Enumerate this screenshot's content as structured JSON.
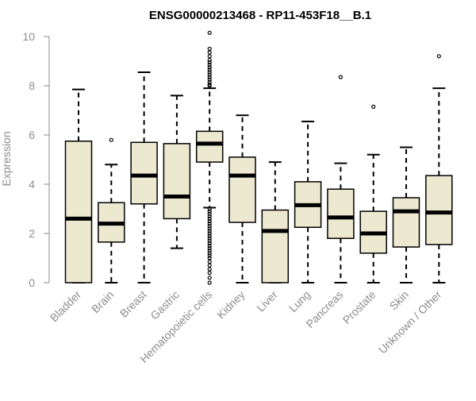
{
  "chart_data": {
    "type": "boxplot",
    "title": "ENSG00000213468 - RP11-453F18__B.1",
    "ylabel": "Expression",
    "xlabel": "",
    "ylim": [
      0,
      10
    ],
    "yticks": [
      0,
      2,
      4,
      6,
      8,
      10
    ],
    "grid": false,
    "legend": "none",
    "box_fill": "#ede8d0",
    "box_stroke": "#000000",
    "axis_color": "#8c8c8c",
    "categories": [
      "Bladder",
      "Brain",
      "Breast",
      "Gastric",
      "Hematopoietic cells",
      "Kidney",
      "Liver",
      "Lung",
      "Pancreas",
      "Prostate",
      "Skin",
      "Unknown / Other"
    ],
    "boxes": [
      {
        "min": 0,
        "q1": 0,
        "median": 2.6,
        "q3": 5.75,
        "max": 7.85,
        "outliers": []
      },
      {
        "min": 0,
        "q1": 1.65,
        "median": 2.4,
        "q3": 3.25,
        "max": 4.8,
        "outliers": [
          5.8
        ]
      },
      {
        "min": 0,
        "q1": 3.2,
        "median": 4.35,
        "q3": 5.7,
        "max": 8.55,
        "outliers": []
      },
      {
        "min": 1.4,
        "q1": 2.6,
        "median": 3.5,
        "q3": 5.65,
        "max": 7.6,
        "outliers": []
      },
      {
        "min": 3.05,
        "q1": 4.9,
        "median": 5.65,
        "q3": 6.15,
        "max": 7.9,
        "outliers": [
          10.15,
          9.5,
          9.35,
          9.2,
          9.05,
          8.95,
          8.85,
          8.75,
          8.65,
          8.55,
          8.45,
          8.35,
          8.25,
          8.15,
          8.05,
          8.0,
          3.0,
          2.9,
          2.8,
          2.7,
          2.6,
          2.5,
          2.4,
          2.3,
          2.2,
          2.1,
          2.0,
          1.9,
          1.8,
          1.7,
          1.6,
          1.5,
          1.4,
          1.3,
          1.2,
          1.1,
          1.0,
          0.85,
          0.7,
          0.55,
          0.4,
          0.2,
          0.0
        ]
      },
      {
        "min": 0,
        "q1": 2.45,
        "median": 4.35,
        "q3": 5.1,
        "max": 6.8,
        "outliers": []
      },
      {
        "min": 0,
        "q1": 0,
        "median": 2.1,
        "q3": 2.95,
        "max": 4.9,
        "outliers": []
      },
      {
        "min": 0,
        "q1": 2.25,
        "median": 3.15,
        "q3": 4.1,
        "max": 6.55,
        "outliers": []
      },
      {
        "min": 0,
        "q1": 1.8,
        "median": 2.65,
        "q3": 3.8,
        "max": 4.85,
        "outliers": [
          8.35
        ]
      },
      {
        "min": 0,
        "q1": 1.2,
        "median": 2.0,
        "q3": 2.9,
        "max": 5.2,
        "outliers": [
          7.15
        ]
      },
      {
        "min": 0,
        "q1": 1.45,
        "median": 2.9,
        "q3": 3.45,
        "max": 5.5,
        "outliers": []
      },
      {
        "min": 0,
        "q1": 1.55,
        "median": 2.85,
        "q3": 4.35,
        "max": 7.9,
        "outliers": [
          9.2
        ]
      }
    ]
  }
}
